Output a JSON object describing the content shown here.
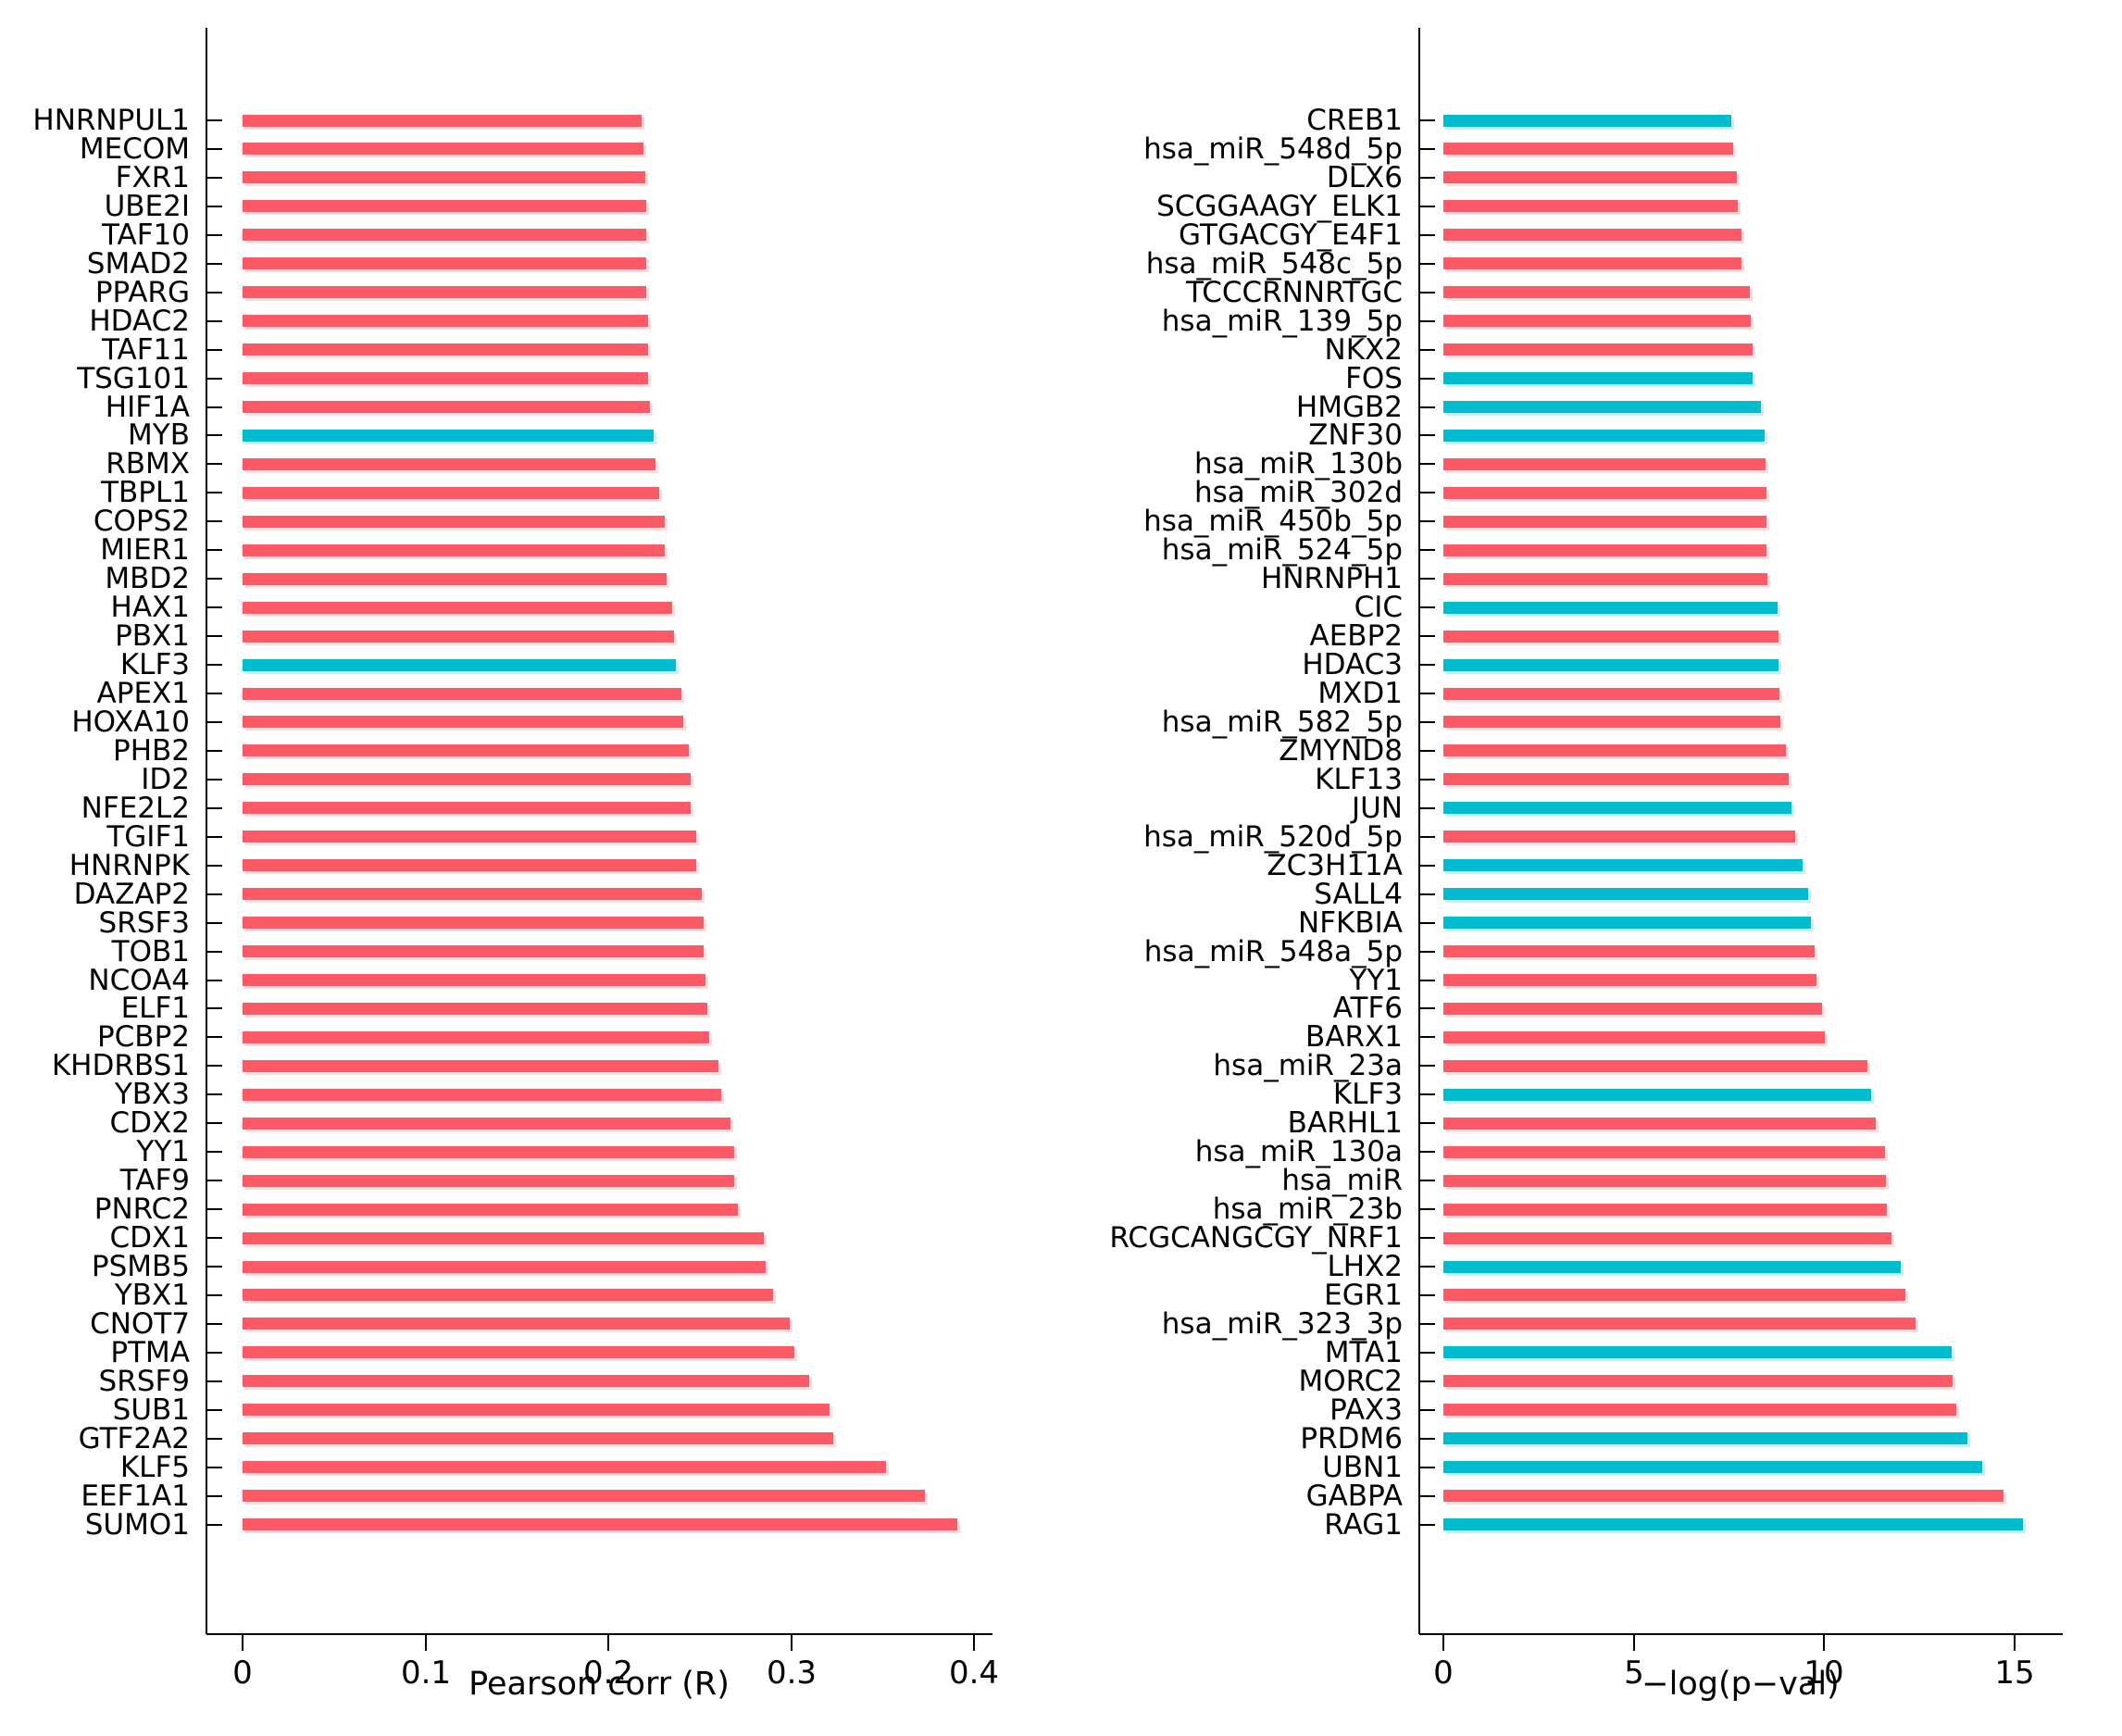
{
  "colors": {
    "red": "#FB5A66",
    "cyan": "#00BCCE",
    "axis": "#000000"
  },
  "chart_data": [
    {
      "type": "bar",
      "orientation": "horizontal",
      "title": "",
      "xlabel": "Pearson corr (R)",
      "ylabel": "",
      "xlim": [
        0,
        0.41
      ],
      "xticks": [
        0,
        0.1,
        0.2,
        0.3,
        0.4
      ],
      "xtick_labels": [
        "0",
        "0.1",
        "0.2",
        "0.3",
        "0.4"
      ],
      "grid": false,
      "legend": "none",
      "items": [
        {
          "label": "HNRNPUL1",
          "value": 0.218,
          "color": "red"
        },
        {
          "label": "MECOM",
          "value": 0.219,
          "color": "red"
        },
        {
          "label": "FXR1",
          "value": 0.22,
          "color": "red"
        },
        {
          "label": "UBE2I",
          "value": 0.221,
          "color": "red"
        },
        {
          "label": "TAF10",
          "value": 0.221,
          "color": "red"
        },
        {
          "label": "SMAD2",
          "value": 0.221,
          "color": "red"
        },
        {
          "label": "PPARG",
          "value": 0.221,
          "color": "red"
        },
        {
          "label": "HDAC2",
          "value": 0.222,
          "color": "red"
        },
        {
          "label": "TAF11",
          "value": 0.222,
          "color": "red"
        },
        {
          "label": "TSG101",
          "value": 0.222,
          "color": "red"
        },
        {
          "label": "HIF1A",
          "value": 0.223,
          "color": "red"
        },
        {
          "label": "MYB",
          "value": 0.225,
          "color": "cyan"
        },
        {
          "label": "RBMX",
          "value": 0.226,
          "color": "red"
        },
        {
          "label": "TBPL1",
          "value": 0.228,
          "color": "red"
        },
        {
          "label": "COPS2",
          "value": 0.231,
          "color": "red"
        },
        {
          "label": "MIER1",
          "value": 0.231,
          "color": "red"
        },
        {
          "label": "MBD2",
          "value": 0.232,
          "color": "red"
        },
        {
          "label": "HAX1",
          "value": 0.235,
          "color": "red"
        },
        {
          "label": "PBX1",
          "value": 0.236,
          "color": "red"
        },
        {
          "label": "KLF3",
          "value": 0.237,
          "color": "cyan"
        },
        {
          "label": "APEX1",
          "value": 0.24,
          "color": "red"
        },
        {
          "label": "HOXA10",
          "value": 0.241,
          "color": "red"
        },
        {
          "label": "PHB2",
          "value": 0.244,
          "color": "red"
        },
        {
          "label": "ID2",
          "value": 0.245,
          "color": "red"
        },
        {
          "label": "NFE2L2",
          "value": 0.245,
          "color": "red"
        },
        {
          "label": "TGIF1",
          "value": 0.248,
          "color": "red"
        },
        {
          "label": "HNRNPK",
          "value": 0.248,
          "color": "red"
        },
        {
          "label": "DAZAP2",
          "value": 0.251,
          "color": "red"
        },
        {
          "label": "SRSF3",
          "value": 0.252,
          "color": "red"
        },
        {
          "label": "TOB1",
          "value": 0.252,
          "color": "red"
        },
        {
          "label": "NCOA4",
          "value": 0.253,
          "color": "red"
        },
        {
          "label": "ELF1",
          "value": 0.254,
          "color": "red"
        },
        {
          "label": "PCBP2",
          "value": 0.255,
          "color": "red"
        },
        {
          "label": "KHDRBS1",
          "value": 0.26,
          "color": "red"
        },
        {
          "label": "YBX3",
          "value": 0.262,
          "color": "red"
        },
        {
          "label": "CDX2",
          "value": 0.267,
          "color": "red"
        },
        {
          "label": "YY1",
          "value": 0.269,
          "color": "red"
        },
        {
          "label": "TAF9",
          "value": 0.269,
          "color": "red"
        },
        {
          "label": "PNRC2",
          "value": 0.271,
          "color": "red"
        },
        {
          "label": "CDX1",
          "value": 0.285,
          "color": "red"
        },
        {
          "label": "PSMB5",
          "value": 0.286,
          "color": "red"
        },
        {
          "label": "YBX1",
          "value": 0.29,
          "color": "red"
        },
        {
          "label": "CNOT7",
          "value": 0.299,
          "color": "red"
        },
        {
          "label": "PTMA",
          "value": 0.302,
          "color": "red"
        },
        {
          "label": "SRSF9",
          "value": 0.31,
          "color": "red"
        },
        {
          "label": "SUB1",
          "value": 0.321,
          "color": "red"
        },
        {
          "label": "GTF2A2",
          "value": 0.323,
          "color": "red"
        },
        {
          "label": "KLF5",
          "value": 0.352,
          "color": "red"
        },
        {
          "label": "EEF1A1",
          "value": 0.373,
          "color": "red"
        },
        {
          "label": "SUMO1",
          "value": 0.391,
          "color": "red"
        }
      ]
    },
    {
      "type": "bar",
      "orientation": "horizontal",
      "title": "",
      "xlabel": "−log(p−val)",
      "ylabel": "",
      "xlim": [
        0,
        16.3
      ],
      "xticks": [
        0,
        5,
        10,
        15
      ],
      "xtick_labels": [
        "0",
        "5",
        "10",
        "15"
      ],
      "grid": false,
      "legend": "none",
      "items": [
        {
          "label": "CREB1",
          "value": 7.57,
          "color": "cyan"
        },
        {
          "label": "hsa_miR_548d_5p",
          "value": 7.62,
          "color": "red"
        },
        {
          "label": "DLX6",
          "value": 7.71,
          "color": "red"
        },
        {
          "label": "SCGGAAGY_ELK1",
          "value": 7.74,
          "color": "red"
        },
        {
          "label": "GTGACGY_E4F1",
          "value": 7.83,
          "color": "red"
        },
        {
          "label": "hsa_miR_548c_5p",
          "value": 7.84,
          "color": "red"
        },
        {
          "label": "TCCCRNNRTGC",
          "value": 8.05,
          "color": "red"
        },
        {
          "label": "hsa_miR_139_5p",
          "value": 8.09,
          "color": "red"
        },
        {
          "label": "NKX2",
          "value": 8.12,
          "color": "red"
        },
        {
          "label": "FOS",
          "value": 8.13,
          "color": "cyan"
        },
        {
          "label": "HMGB2",
          "value": 8.35,
          "color": "cyan"
        },
        {
          "label": "ZNF30",
          "value": 8.45,
          "color": "cyan"
        },
        {
          "label": "hsa_miR_130b",
          "value": 8.46,
          "color": "red"
        },
        {
          "label": "hsa_miR_302d",
          "value": 8.48,
          "color": "red"
        },
        {
          "label": "hsa_miR_450b_5p",
          "value": 8.49,
          "color": "red"
        },
        {
          "label": "hsa_miR_524_5p",
          "value": 8.5,
          "color": "red"
        },
        {
          "label": "HNRNPH1",
          "value": 8.52,
          "color": "red"
        },
        {
          "label": "CIC",
          "value": 8.79,
          "color": "cyan"
        },
        {
          "label": "AEBP2",
          "value": 8.8,
          "color": "red"
        },
        {
          "label": "HDAC3",
          "value": 8.81,
          "color": "cyan"
        },
        {
          "label": "MXD1",
          "value": 8.82,
          "color": "red"
        },
        {
          "label": "hsa_miR_582_5p",
          "value": 8.86,
          "color": "red"
        },
        {
          "label": "ZMYND8",
          "value": 9.01,
          "color": "red"
        },
        {
          "label": "KLF13",
          "value": 9.08,
          "color": "red"
        },
        {
          "label": "JUN",
          "value": 9.15,
          "color": "cyan"
        },
        {
          "label": "hsa_miR_520d_5p",
          "value": 9.25,
          "color": "red"
        },
        {
          "label": "ZC3H11A",
          "value": 9.45,
          "color": "cyan"
        },
        {
          "label": "SALL4",
          "value": 9.58,
          "color": "cyan"
        },
        {
          "label": "NFKBIA",
          "value": 9.67,
          "color": "cyan"
        },
        {
          "label": "hsa_miR_548a_5p",
          "value": 9.75,
          "color": "red"
        },
        {
          "label": "YY1",
          "value": 9.81,
          "color": "red"
        },
        {
          "label": "ATF6",
          "value": 9.94,
          "color": "red"
        },
        {
          "label": "BARX1",
          "value": 10.02,
          "color": "red"
        },
        {
          "label": "hsa_miR_23a",
          "value": 11.15,
          "color": "red"
        },
        {
          "label": "KLF3",
          "value": 11.25,
          "color": "cyan"
        },
        {
          "label": "BARHL1",
          "value": 11.37,
          "color": "red"
        },
        {
          "label": "hsa_miR_130a",
          "value": 11.6,
          "color": "red"
        },
        {
          "label": "hsa_miR",
          "value": 11.62,
          "color": "red"
        },
        {
          "label": "hsa_miR_23b",
          "value": 11.66,
          "color": "red"
        },
        {
          "label": "RCGCANGCGY_NRF1",
          "value": 11.77,
          "color": "red"
        },
        {
          "label": "LHX2",
          "value": 12.01,
          "color": "cyan"
        },
        {
          "label": "EGR1",
          "value": 12.13,
          "color": "red"
        },
        {
          "label": "hsa_miR_323_3p",
          "value": 12.41,
          "color": "red"
        },
        {
          "label": "MTA1",
          "value": 13.35,
          "color": "cyan"
        },
        {
          "label": "MORC2",
          "value": 13.39,
          "color": "red"
        },
        {
          "label": "PAX3",
          "value": 13.47,
          "color": "red"
        },
        {
          "label": "PRDM6",
          "value": 13.77,
          "color": "cyan"
        },
        {
          "label": "UBN1",
          "value": 14.16,
          "color": "cyan"
        },
        {
          "label": "GABPA",
          "value": 14.72,
          "color": "red"
        },
        {
          "label": "RAG1",
          "value": 15.22,
          "color": "cyan"
        }
      ]
    }
  ]
}
